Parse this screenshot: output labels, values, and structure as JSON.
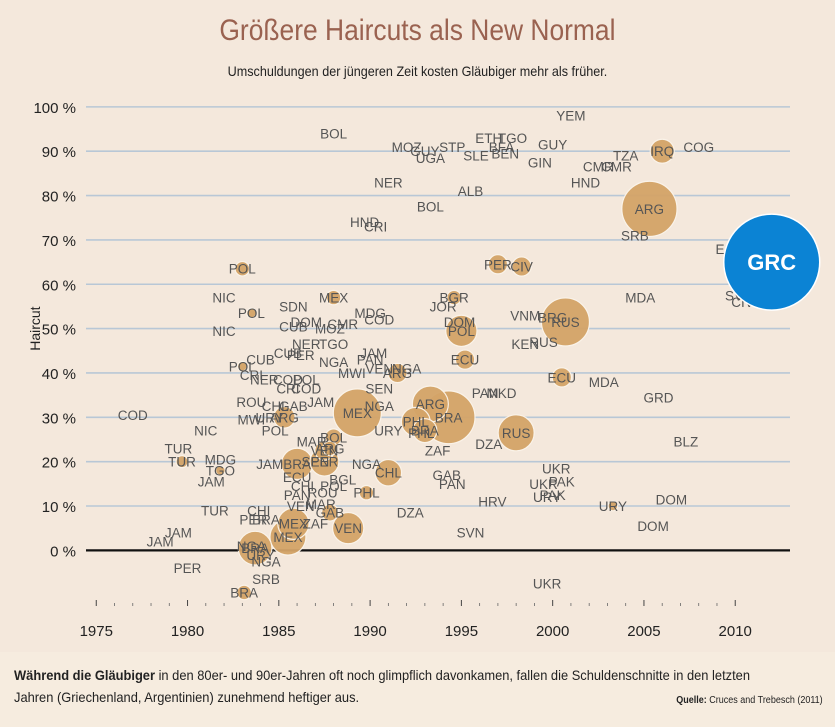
{
  "title": "Größere Haircuts als New Normal",
  "subtitle": "Umschuldungen der jüngeren Zeit kosten Gläubiger mehr als früher.",
  "footer": {
    "lead": "Während die Gläubiger",
    "rest": " in den 80er- und 90er-Jahren oft noch glimpflich davonkamen, fallen die Schuldenschnitte in den letzten Jahren (Griechenland, Argentinien) zunehmend heftiger aus."
  },
  "source": {
    "label": "Quelle:",
    "text": "Cruces and Trebesch (2011)"
  },
  "colors": {
    "bubble": "#d4a468",
    "highlight": "#0b83d4",
    "grid": "#b8c7d6",
    "zero_line": "#111111",
    "label": "#555555"
  },
  "chart_data": {
    "type": "scatter",
    "title": "Größere Haircuts als New Normal",
    "subtitle": "Umschuldungen der jüngeren Zeit kosten Gläubiger mehr als früher.",
    "xlabel": "",
    "ylabel": "Haircut",
    "xlim": [
      1974,
      2013
    ],
    "ylim": [
      -13,
      102
    ],
    "x_ticks": [
      1975,
      1980,
      1985,
      1990,
      1995,
      2000,
      2005,
      2010
    ],
    "y_ticks": [
      "0 %",
      "10 %",
      "20 %",
      "30 %",
      "40 %",
      "50 %",
      "60 %",
      "70 %",
      "80 %",
      "90 %",
      "100 %"
    ],
    "y_tick_values": [
      0,
      10,
      20,
      30,
      40,
      50,
      60,
      70,
      80,
      90,
      100
    ],
    "grid": true,
    "highlight": {
      "label": "GRC",
      "x": 2012,
      "y": 65,
      "size": 3
    }
  },
  "points": [
    {
      "label": "YEM",
      "x": 2001,
      "y": 98,
      "size": 0
    },
    {
      "label": "BOL",
      "x": 1988,
      "y": 94,
      "size": 0
    },
    {
      "label": "TGO",
      "x": 1997.8,
      "y": 93,
      "size": 0
    },
    {
      "label": "ETH",
      "x": 1996.5,
      "y": 93,
      "size": 0
    },
    {
      "label": "GUY",
      "x": 2000,
      "y": 91.5,
      "size": 0
    },
    {
      "label": "MOZ",
      "x": 1992,
      "y": 91,
      "size": 0
    },
    {
      "label": "STP",
      "x": 1994.5,
      "y": 91,
      "size": 0
    },
    {
      "label": "BFA",
      "x": 1997.2,
      "y": 91,
      "size": 0
    },
    {
      "label": "GUY",
      "x": 1993,
      "y": 90,
      "size": 0
    },
    {
      "label": "UGA",
      "x": 1993.3,
      "y": 88.5,
      "size": 0
    },
    {
      "label": "SLE",
      "x": 1995.8,
      "y": 89,
      "size": 0
    },
    {
      "label": "BEN",
      "x": 1997.4,
      "y": 89.5,
      "size": 0
    },
    {
      "label": "GIN",
      "x": 1999.3,
      "y": 87.5,
      "size": 0
    },
    {
      "label": "TZA",
      "x": 2004,
      "y": 89,
      "size": 0
    },
    {
      "label": "IRQ",
      "x": 2006,
      "y": 90,
      "size": 1
    },
    {
      "label": "COG",
      "x": 2008,
      "y": 91,
      "size": 0
    },
    {
      "label": "CMR",
      "x": 2002.5,
      "y": 86.5,
      "size": 0
    },
    {
      "label": "CMR",
      "x": 2003.5,
      "y": 86.5,
      "size": 0
    },
    {
      "label": "NER",
      "x": 1991,
      "y": 83,
      "size": 0
    },
    {
      "label": "HND",
      "x": 2001.8,
      "y": 83,
      "size": 0
    },
    {
      "label": "ALB",
      "x": 1995.5,
      "y": 81,
      "size": 0
    },
    {
      "label": "BOL",
      "x": 1993.3,
      "y": 77.5,
      "size": 0
    },
    {
      "label": "ARG",
      "x": 2005.3,
      "y": 77,
      "size": 2.3
    },
    {
      "label": "HND",
      "x": 1989.7,
      "y": 74,
      "size": 0
    },
    {
      "label": "CRI",
      "x": 1990.3,
      "y": 73,
      "size": 0
    },
    {
      "label": "SRB",
      "x": 2004.5,
      "y": 71,
      "size": 0
    },
    {
      "label": "ECU",
      "x": 2009.7,
      "y": 68,
      "size": 0
    },
    {
      "label": "PER",
      "x": 1997,
      "y": 64.5,
      "size": 0.8
    },
    {
      "label": "CIV",
      "x": 1998.3,
      "y": 64,
      "size": 0.8
    },
    {
      "label": "POL",
      "x": 1983,
      "y": 63.5,
      "size": 0.6
    },
    {
      "label": "NIC",
      "x": 1982,
      "y": 57,
      "size": 0
    },
    {
      "label": "MEX",
      "x": 1988,
      "y": 57,
      "size": 0.6
    },
    {
      "label": "BGR",
      "x": 1994.6,
      "y": 57,
      "size": 0.6
    },
    {
      "label": "MDA",
      "x": 2004.8,
      "y": 57,
      "size": 0
    },
    {
      "label": "SVN",
      "x": 2010.2,
      "y": 57.5,
      "size": 0
    },
    {
      "label": "CIV",
      "x": 2010.4,
      "y": 56,
      "size": 0
    },
    {
      "label": "SDN",
      "x": 1985.8,
      "y": 55,
      "size": 0
    },
    {
      "label": "JOR",
      "x": 1994,
      "y": 55,
      "size": 0
    },
    {
      "label": "POL",
      "x": 1983.5,
      "y": 53.5,
      "size": 0.4
    },
    {
      "label": "MDG",
      "x": 1990,
      "y": 53.5,
      "size": 0
    },
    {
      "label": "VNM",
      "x": 1998.5,
      "y": 53,
      "size": 0
    },
    {
      "label": "BRG",
      "x": 2000,
      "y": 52.5,
      "size": 0
    },
    {
      "label": "RUS",
      "x": 2000.7,
      "y": 51.5,
      "size": 2
    },
    {
      "label": "DOM",
      "x": 1986.5,
      "y": 51.5,
      "size": 0
    },
    {
      "label": "CMR",
      "x": 1988.5,
      "y": 51,
      "size": 0
    },
    {
      "label": "COD",
      "x": 1990.5,
      "y": 52,
      "size": 0
    },
    {
      "label": "DOM",
      "x": 1994.9,
      "y": 51.5,
      "size": 0
    },
    {
      "label": "NIC",
      "x": 1982,
      "y": 49.5,
      "size": 0
    },
    {
      "label": "CUB",
      "x": 1985.8,
      "y": 50.5,
      "size": 0
    },
    {
      "label": "MOZ",
      "x": 1987.8,
      "y": 50,
      "size": 0
    },
    {
      "label": "POL",
      "x": 1995,
      "y": 49.5,
      "size": 1.3
    },
    {
      "label": "NER",
      "x": 1986.5,
      "y": 46.5,
      "size": 0
    },
    {
      "label": "TGO",
      "x": 1988,
      "y": 46.5,
      "size": 0
    },
    {
      "label": "KEN",
      "x": 1998.5,
      "y": 46.5,
      "size": 0
    },
    {
      "label": "RUS",
      "x": 1999.5,
      "y": 47,
      "size": 0
    },
    {
      "label": "CUB",
      "x": 1985.5,
      "y": 44.5,
      "size": 0
    },
    {
      "label": "JAM",
      "x": 1990.2,
      "y": 44.5,
      "size": 0
    },
    {
      "label": "PER",
      "x": 1986.2,
      "y": 44,
      "size": 0
    },
    {
      "label": "NGA",
      "x": 1988,
      "y": 42.5,
      "size": 0
    },
    {
      "label": "PAN",
      "x": 1990,
      "y": 43,
      "size": 0
    },
    {
      "label": "ECU",
      "x": 1995.2,
      "y": 43,
      "size": 0.8
    },
    {
      "label": "CUB",
      "x": 1984,
      "y": 43,
      "size": 0
    },
    {
      "label": "POL",
      "x": 1983,
      "y": 41.5,
      "size": 0.4
    },
    {
      "label": "MWI",
      "x": 1989,
      "y": 40,
      "size": 0
    },
    {
      "label": "VEN",
      "x": 1990.5,
      "y": 41,
      "size": 0
    },
    {
      "label": "ARG",
      "x": 1991.5,
      "y": 40,
      "size": 0.8
    },
    {
      "label": "NGA",
      "x": 1992,
      "y": 41,
      "size": 0
    },
    {
      "label": "CRI",
      "x": 1983.5,
      "y": 39.5,
      "size": 0
    },
    {
      "label": "NER",
      "x": 1984.2,
      "y": 38.5,
      "size": 0
    },
    {
      "label": "COD",
      "x": 1985.5,
      "y": 38.5,
      "size": 0
    },
    {
      "label": "POL",
      "x": 1986.5,
      "y": 38.5,
      "size": 0
    },
    {
      "label": "ECU",
      "x": 2000.5,
      "y": 39,
      "size": 0.8
    },
    {
      "label": "MDA",
      "x": 2002.8,
      "y": 38,
      "size": 0
    },
    {
      "label": "CRI",
      "x": 1985.5,
      "y": 36.5,
      "size": 0
    },
    {
      "label": "COD",
      "x": 1986.5,
      "y": 36.5,
      "size": 0
    },
    {
      "label": "SEN",
      "x": 1990.5,
      "y": 36.5,
      "size": 0
    },
    {
      "label": "PAN",
      "x": 1996.3,
      "y": 35.5,
      "size": 0
    },
    {
      "label": "MKD",
      "x": 1997.2,
      "y": 35.5,
      "size": 0
    },
    {
      "label": "GRD",
      "x": 2005.8,
      "y": 34.5,
      "size": 0
    },
    {
      "label": "ROU",
      "x": 1983.5,
      "y": 33.5,
      "size": 0
    },
    {
      "label": "JAM",
      "x": 1987.3,
      "y": 33.5,
      "size": 0
    },
    {
      "label": "CHL",
      "x": 1984.8,
      "y": 32.5,
      "size": 0
    },
    {
      "label": "GAB",
      "x": 1985.8,
      "y": 32.5,
      "size": 0
    },
    {
      "label": "NGA",
      "x": 1990.5,
      "y": 32.5,
      "size": 0
    },
    {
      "label": "ARG",
      "x": 1993.3,
      "y": 33,
      "size": 1.5
    },
    {
      "label": "COD",
      "x": 1977,
      "y": 30.5,
      "size": 0
    },
    {
      "label": "MWI",
      "x": 1983.5,
      "y": 29.5,
      "size": 0
    },
    {
      "label": "URY",
      "x": 1984.5,
      "y": 30,
      "size": 0
    },
    {
      "label": "ARG",
      "x": 1985.3,
      "y": 30,
      "size": 0.9
    },
    {
      "label": "MEX",
      "x": 1989.3,
      "y": 31,
      "size": 2
    },
    {
      "label": "BRA",
      "x": 1994.3,
      "y": 30,
      "size": 2.2
    },
    {
      "label": "PHL",
      "x": 1992.5,
      "y": 29,
      "size": 1.2
    },
    {
      "label": "POL",
      "x": 1984.8,
      "y": 27,
      "size": 0
    },
    {
      "label": "NIC",
      "x": 1981,
      "y": 27,
      "size": 0
    },
    {
      "label": "BRA",
      "x": 1993,
      "y": 27,
      "size": 1
    },
    {
      "label": "URY",
      "x": 1991,
      "y": 27,
      "size": 0
    },
    {
      "label": "PHL",
      "x": 1992.8,
      "y": 26.5,
      "size": 0
    },
    {
      "label": "RUS",
      "x": 1998,
      "y": 26.5,
      "size": 1.5
    },
    {
      "label": "BOL",
      "x": 1988,
      "y": 25.5,
      "size": 0.7
    },
    {
      "label": "DZA",
      "x": 1996.5,
      "y": 24,
      "size": 0
    },
    {
      "label": "BLZ",
      "x": 2007.3,
      "y": 24.5,
      "size": 0
    },
    {
      "label": "MAR",
      "x": 1986.8,
      "y": 24.5,
      "size": 0
    },
    {
      "label": "TUR",
      "x": 1979.5,
      "y": 23,
      "size": 0
    },
    {
      "label": "VEN",
      "x": 1987.5,
      "y": 22.5,
      "size": 0.8
    },
    {
      "label": "ZAF",
      "x": 1993.7,
      "y": 22.5,
      "size": 0
    },
    {
      "label": "ARG",
      "x": 1987.8,
      "y": 23,
      "size": 0.6
    },
    {
      "label": "TUR",
      "x": 1979.7,
      "y": 20,
      "size": 0.5
    },
    {
      "label": "MDG",
      "x": 1981.8,
      "y": 20.5,
      "size": 0
    },
    {
      "label": "JAM",
      "x": 1984.5,
      "y": 19.5,
      "size": 0
    },
    {
      "label": "BRA",
      "x": 1986,
      "y": 19.5,
      "size": 1.3
    },
    {
      "label": "PER",
      "x": 1987.5,
      "y": 20,
      "size": 1.2
    },
    {
      "label": "SEN",
      "x": 1987,
      "y": 20,
      "size": 0
    },
    {
      "label": "NGA",
      "x": 1989.8,
      "y": 19.5,
      "size": 0
    },
    {
      "label": "TGO",
      "x": 1981.8,
      "y": 18,
      "size": 0.4
    },
    {
      "label": "UKR",
      "x": 2000.2,
      "y": 18.5,
      "size": 0
    },
    {
      "label": "JAM",
      "x": 1981.3,
      "y": 15.5,
      "size": 0
    },
    {
      "label": "CHL",
      "x": 1991,
      "y": 17.5,
      "size": 1.1
    },
    {
      "label": "GAB",
      "x": 1994.2,
      "y": 17,
      "size": 0
    },
    {
      "label": "PAK",
      "x": 2000.5,
      "y": 15.5,
      "size": 0
    },
    {
      "label": "ECU",
      "x": 1986,
      "y": 16.5,
      "size": 0
    },
    {
      "label": "BGL",
      "x": 1988.5,
      "y": 16,
      "size": 0
    },
    {
      "label": "PAN",
      "x": 1994.5,
      "y": 15,
      "size": 0
    },
    {
      "label": "UKR",
      "x": 1999.5,
      "y": 15,
      "size": 0
    },
    {
      "label": "CHI",
      "x": 1986.3,
      "y": 14.5,
      "size": 0
    },
    {
      "label": "POL",
      "x": 1988,
      "y": 14.5,
      "size": 0
    },
    {
      "label": "PAN",
      "x": 1986,
      "y": 12.5,
      "size": 0
    },
    {
      "label": "ROU",
      "x": 1987.4,
      "y": 13,
      "size": 0
    },
    {
      "label": "PHL",
      "x": 1989.8,
      "y": 13,
      "size": 0.6
    },
    {
      "label": "URY",
      "x": 1999.7,
      "y": 12,
      "size": 0
    },
    {
      "label": "PAK",
      "x": 2000,
      "y": 12.5,
      "size": 0
    },
    {
      "label": "HRV",
      "x": 1996.7,
      "y": 11,
      "size": 0
    },
    {
      "label": "DOM",
      "x": 2006.5,
      "y": 11.5,
      "size": 0
    },
    {
      "label": "VEN",
      "x": 1986.2,
      "y": 10,
      "size": 0
    },
    {
      "label": "MAR",
      "x": 1987.3,
      "y": 10.5,
      "size": 0
    },
    {
      "label": "URY",
      "x": 2003.3,
      "y": 10,
      "size": 0.4
    },
    {
      "label": "TUR",
      "x": 1981.5,
      "y": 9,
      "size": 0
    },
    {
      "label": "CHI",
      "x": 1983.9,
      "y": 9,
      "size": 0
    },
    {
      "label": "GAB",
      "x": 1987.8,
      "y": 8.5,
      "size": 0.7
    },
    {
      "label": "DZA",
      "x": 1992.2,
      "y": 8.5,
      "size": 0
    },
    {
      "label": "PER",
      "x": 1983.6,
      "y": 7,
      "size": 0
    },
    {
      "label": "BRA",
      "x": 1984.3,
      "y": 7,
      "size": 0
    },
    {
      "label": "MEX",
      "x": 1985.8,
      "y": 6,
      "size": 1.3
    },
    {
      "label": "ZAF",
      "x": 1987,
      "y": 6,
      "size": 0
    },
    {
      "label": "DOM",
      "x": 2005.5,
      "y": 5.5,
      "size": 0
    },
    {
      "label": "JAM",
      "x": 1979.5,
      "y": 4,
      "size": 0
    },
    {
      "label": "VEN",
      "x": 1988.8,
      "y": 5,
      "size": 1.3
    },
    {
      "label": "SVN",
      "x": 1995.5,
      "y": 4,
      "size": 0
    },
    {
      "label": "MEX",
      "x": 1985.5,
      "y": 3,
      "size": 1.5
    },
    {
      "label": "JAM",
      "x": 1978.5,
      "y": 2,
      "size": 0
    },
    {
      "label": "BRA",
      "x": 1983.7,
      "y": 0.5,
      "size": 1.4
    },
    {
      "label": "NGA",
      "x": 1983.5,
      "y": 1,
      "size": 0
    },
    {
      "label": "URY",
      "x": 1984,
      "y": -1,
      "size": 0
    },
    {
      "label": "NGA",
      "x": 1984.3,
      "y": -2.5,
      "size": 0
    },
    {
      "label": "PER",
      "x": 1980,
      "y": -4,
      "size": 0
    },
    {
      "label": "SRB",
      "x": 1984.3,
      "y": -6.5,
      "size": 0
    },
    {
      "label": "UKR",
      "x": 1999.7,
      "y": -7.5,
      "size": 0
    },
    {
      "label": "BRA",
      "x": 1983.1,
      "y": -9.5,
      "size": 0.6
    }
  ]
}
